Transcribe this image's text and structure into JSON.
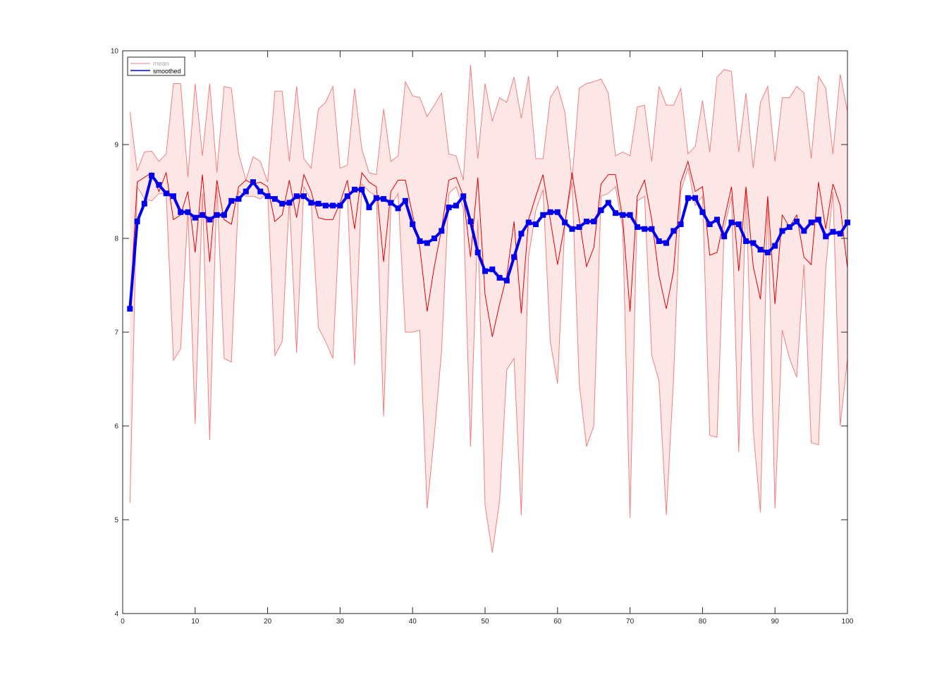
{
  "chart_data": {
    "type": "line",
    "title": "",
    "xlabel": "",
    "ylabel": "",
    "xlim": [
      0,
      100
    ],
    "ylim": [
      4,
      10
    ],
    "x_ticks": [
      "0",
      "10",
      "20",
      "30",
      "40",
      "50",
      "60",
      "70",
      "80",
      "90",
      "100"
    ],
    "y_ticks": [
      "4",
      "5",
      "6",
      "7",
      "8",
      "9",
      "10"
    ],
    "grid": false,
    "legend": {
      "placement": "top-left",
      "entries": [
        "mean",
        "smoothed"
      ]
    },
    "colors": {
      "mean": "#e00000",
      "band_fill": "#fde6e6",
      "band_edge": "#f08080",
      "smoothed": "#0000ee",
      "axis": "#262626"
    },
    "x": [
      1,
      2,
      3,
      4,
      5,
      6,
      7,
      8,
      9,
      10,
      11,
      12,
      13,
      14,
      15,
      16,
      17,
      18,
      19,
      20,
      21,
      22,
      23,
      24,
      25,
      26,
      27,
      28,
      29,
      30,
      31,
      32,
      33,
      34,
      35,
      36,
      37,
      38,
      39,
      40,
      41,
      42,
      43,
      44,
      45,
      46,
      47,
      48,
      49,
      50,
      51,
      52,
      53,
      54,
      55,
      56,
      57,
      58,
      59,
      60,
      61,
      62,
      63,
      64,
      65,
      66,
      67,
      68,
      69,
      70,
      71,
      72,
      73,
      74,
      75,
      76,
      77,
      78,
      79,
      80,
      81,
      82,
      83,
      84,
      85,
      86,
      87,
      88,
      89,
      90,
      91,
      92,
      93,
      94,
      95,
      96,
      97,
      98,
      99,
      100
    ],
    "series": [
      {
        "name": "mean",
        "values": [
          7.25,
          8.6,
          8.65,
          8.7,
          8.5,
          8.7,
          8.2,
          8.25,
          8.5,
          7.85,
          8.68,
          7.75,
          8.62,
          8.2,
          8.15,
          8.55,
          8.62,
          8.58,
          8.6,
          8.55,
          8.18,
          8.25,
          8.62,
          8.22,
          8.68,
          8.5,
          8.22,
          8.2,
          8.2,
          8.38,
          8.62,
          8.1,
          8.7,
          8.6,
          8.55,
          7.75,
          8.5,
          8.62,
          8.62,
          8.25,
          7.9,
          7.22,
          7.7,
          8.1,
          8.62,
          8.65,
          8.45,
          7.8,
          8.65,
          7.4,
          6.95,
          7.3,
          7.6,
          8.18,
          7.2,
          8.2,
          8.45,
          8.68,
          8.2,
          7.72,
          8.15,
          8.7,
          8.2,
          7.7,
          7.9,
          8.58,
          8.68,
          8.68,
          8.2,
          7.22,
          8.45,
          8.62,
          8.2,
          7.6,
          7.25,
          7.65,
          8.6,
          8.82,
          8.5,
          8.55,
          7.82,
          7.85,
          8.2,
          8.55,
          7.65,
          8.55,
          7.7,
          7.35,
          8.45,
          7.3,
          8.25,
          8.12,
          8.25,
          7.8,
          7.72,
          8.6,
          8.1,
          8.58,
          8.35,
          7.68
        ]
      },
      {
        "name": "upper",
        "values": [
          9.35,
          8.72,
          8.92,
          8.93,
          8.82,
          8.9,
          9.65,
          9.65,
          8.65,
          9.65,
          8.88,
          9.65,
          8.7,
          9.62,
          9.6,
          8.9,
          8.62,
          8.87,
          8.82,
          8.6,
          9.57,
          9.57,
          8.82,
          9.62,
          8.85,
          8.75,
          9.38,
          9.45,
          9.62,
          8.75,
          8.78,
          9.6,
          8.95,
          8.7,
          8.68,
          9.38,
          8.82,
          8.88,
          9.67,
          9.52,
          9.5,
          9.3,
          9.42,
          9.55,
          8.9,
          8.88,
          8.62,
          9.85,
          8.85,
          9.65,
          9.25,
          9.5,
          9.45,
          9.72,
          9.28,
          9.73,
          8.85,
          8.85,
          9.5,
          9.62,
          9.35,
          8.62,
          9.6,
          9.65,
          9.67,
          9.7,
          9.55,
          8.88,
          8.92,
          8.88,
          9.4,
          9.42,
          8.82,
          9.62,
          9.42,
          9.42,
          9.6,
          8.9,
          8.98,
          9.47,
          8.92,
          9.72,
          9.8,
          9.78,
          8.92,
          9.55,
          8.75,
          9.45,
          9.62,
          8.82,
          9.5,
          9.5,
          9.62,
          9.55,
          8.85,
          9.73,
          9.6,
          8.9,
          9.75,
          9.35
        ]
      },
      {
        "name": "lower",
        "values": [
          5.18,
          8.55,
          8.42,
          8.4,
          8.48,
          8.48,
          6.7,
          6.82,
          8.3,
          6.02,
          8.48,
          5.85,
          8.55,
          6.72,
          6.68,
          8.5,
          8.45,
          8.45,
          8.42,
          8.48,
          6.75,
          6.9,
          8.42,
          6.78,
          8.55,
          8.4,
          7.05,
          6.9,
          6.72,
          8.32,
          8.45,
          6.65,
          8.58,
          8.5,
          8.45,
          6.1,
          8.35,
          8.48,
          7.0,
          7.0,
          7.02,
          5.12,
          5.9,
          6.8,
          8.48,
          8.55,
          8.32,
          5.78,
          8.2,
          5.15,
          4.65,
          5.2,
          6.6,
          6.72,
          5.05,
          7.8,
          8.3,
          8.52,
          6.9,
          6.45,
          8.15,
          8.6,
          6.45,
          5.78,
          6.0,
          8.45,
          8.48,
          8.55,
          8.1,
          5.02,
          8.4,
          8.45,
          6.75,
          6.48,
          5.05,
          6.5,
          8.5,
          8.75,
          8.35,
          8.45,
          5.9,
          5.88,
          8.1,
          8.45,
          5.72,
          8.5,
          5.95,
          5.08,
          8.38,
          5.12,
          7.02,
          6.72,
          6.52,
          7.72,
          5.82,
          5.8,
          7.68,
          8.5,
          6.0,
          6.72
        ]
      },
      {
        "name": "smoothed",
        "values": [
          7.25,
          8.18,
          8.37,
          8.67,
          8.57,
          8.48,
          8.45,
          8.28,
          8.28,
          8.22,
          8.25,
          8.2,
          8.25,
          8.25,
          8.4,
          8.42,
          8.5,
          8.6,
          8.5,
          8.45,
          8.42,
          8.37,
          8.38,
          8.45,
          8.45,
          8.38,
          8.37,
          8.35,
          8.35,
          8.35,
          8.45,
          8.52,
          8.52,
          8.33,
          8.43,
          8.42,
          8.38,
          8.32,
          8.4,
          8.15,
          7.97,
          7.95,
          8.0,
          8.08,
          8.33,
          8.35,
          8.45,
          8.18,
          7.85,
          7.65,
          7.67,
          7.58,
          7.55,
          7.8,
          8.05,
          8.17,
          8.15,
          8.25,
          8.28,
          8.28,
          8.17,
          8.1,
          8.12,
          8.18,
          8.18,
          8.3,
          8.38,
          8.27,
          8.25,
          8.25,
          8.12,
          8.1,
          8.1,
          7.97,
          7.95,
          8.08,
          8.15,
          8.43,
          8.43,
          8.28,
          8.15,
          8.2,
          8.02,
          8.17,
          8.15,
          7.97,
          7.95,
          7.88,
          7.85,
          7.92,
          8.08,
          8.12,
          8.18,
          8.08,
          8.17,
          8.2,
          8.02,
          8.07,
          8.05,
          8.17
        ]
      }
    ]
  }
}
